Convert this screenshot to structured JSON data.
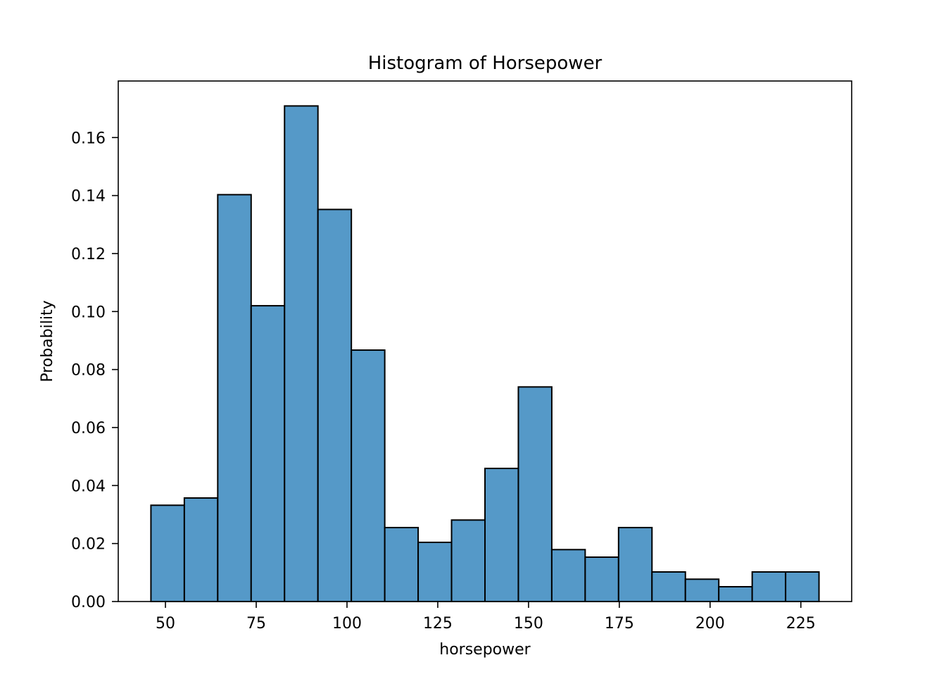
{
  "chart_data": {
    "type": "bar",
    "title": "Histogram of Horsepower",
    "xlabel": "horsepower",
    "ylabel": "Probability",
    "xlim": [
      37,
      239
    ],
    "ylim": [
      0,
      0.1795
    ],
    "xticks": [
      50,
      75,
      100,
      125,
      150,
      175,
      200,
      225
    ],
    "yticks": [
      0.0,
      0.02,
      0.04,
      0.06,
      0.08,
      0.1,
      0.12,
      0.14,
      0.16
    ],
    "ytick_labels": [
      "0.00",
      "0.02",
      "0.04",
      "0.06",
      "0.08",
      "0.10",
      "0.12",
      "0.14",
      "0.16"
    ],
    "grid": false,
    "bin_edges": [
      46,
      55.2,
      64.4,
      73.6,
      82.8,
      92,
      101.2,
      110.4,
      119.6,
      128.8,
      138,
      147.2,
      156.4,
      165.6,
      174.8,
      184,
      193.2,
      202.4,
      211.6,
      220.8,
      230
    ],
    "values": [
      0.0332,
      0.0357,
      0.1403,
      0.102,
      0.1709,
      0.1352,
      0.0867,
      0.0255,
      0.0204,
      0.0281,
      0.0459,
      0.074,
      0.0179,
      0.0153,
      0.0255,
      0.0102,
      0.0077,
      0.0051,
      0.0102,
      0.0102
    ],
    "colors": {
      "bar_fill": "#5599c8",
      "bar_edge": "#000000",
      "axis": "#000000"
    }
  }
}
